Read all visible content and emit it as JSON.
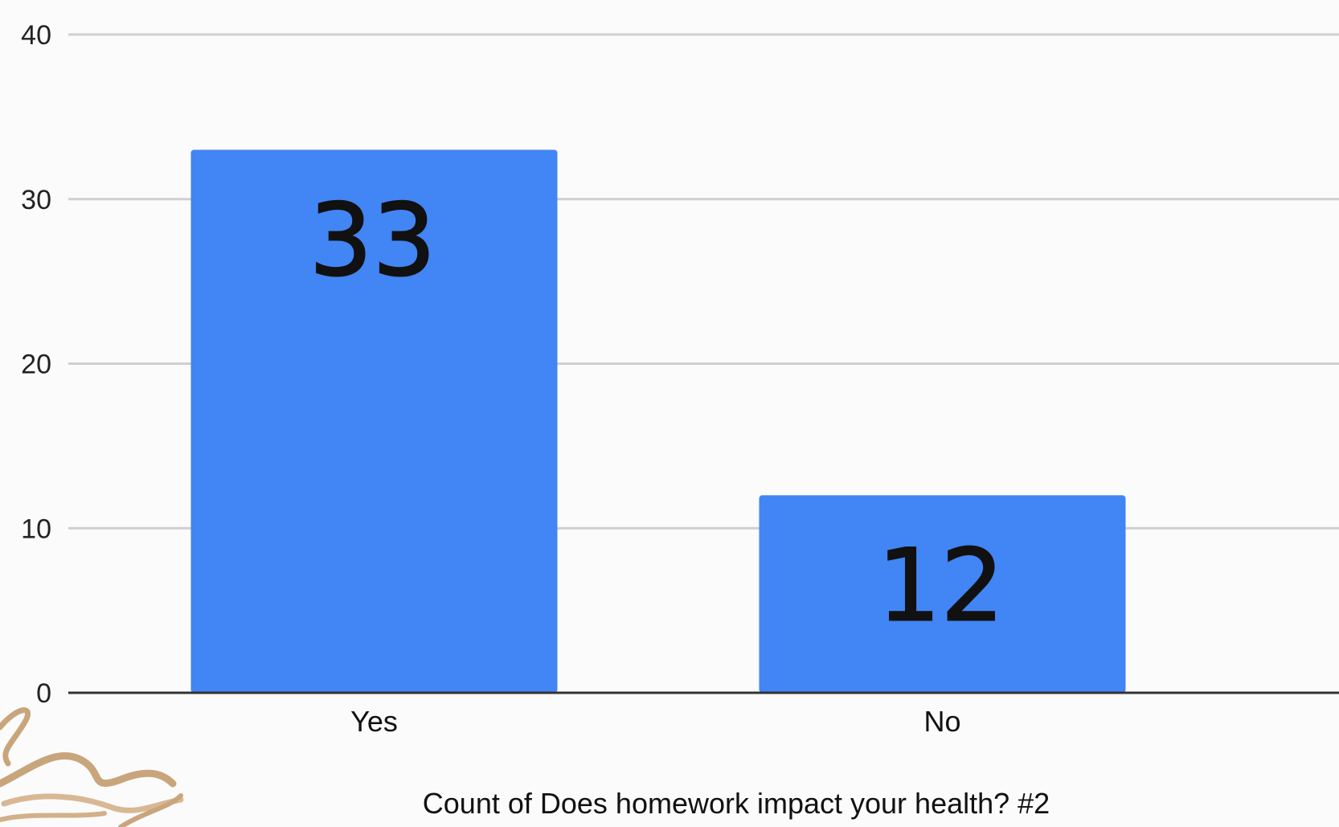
{
  "chart_data": {
    "type": "bar",
    "categories": [
      "Yes",
      "No"
    ],
    "values": [
      33,
      12
    ],
    "value_labels": [
      "33",
      "12"
    ],
    "title": "",
    "xlabel": "Count of Does homework impact your health? #2",
    "ylabel": "",
    "ylim": [
      0,
      40
    ],
    "yticks": [
      0,
      10,
      20,
      30,
      40
    ],
    "grid": true,
    "legend": "none",
    "bar_color": "#4285f4",
    "grid_color": "#cfcfcf",
    "axis_color": "#333333"
  }
}
